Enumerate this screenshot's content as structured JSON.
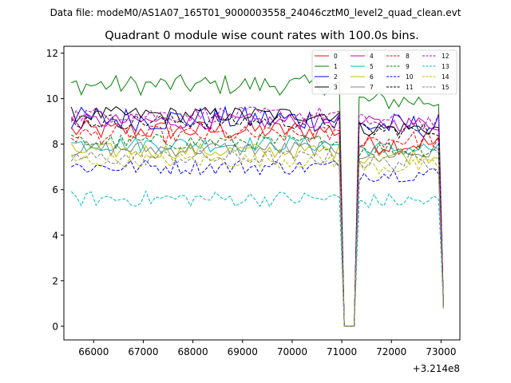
{
  "chart_data": {
    "type": "line",
    "suptitle": "Data file: modeM0/AS1A07_165T01_9000003558_24046cztM0_level2_quad_clean.evt",
    "title": "Quadrant 0 module wise count rates with 100.0s bins.",
    "xlabel": "",
    "ylabel": "",
    "x_offset_label": "+3.214e8",
    "xlim": [
      65400,
      73380
    ],
    "ylim": [
      -0.6,
      12.3
    ],
    "x_ticks": [
      66000,
      67000,
      68000,
      69000,
      70000,
      71000,
      72000,
      73000
    ],
    "x_tick_labels": [
      "66000",
      "67000",
      "68000",
      "69000",
      "70000",
      "71000",
      "72000",
      "73000"
    ],
    "y_ticks": [
      0,
      2,
      4,
      6,
      8,
      10,
      12
    ],
    "y_tick_labels": [
      "0",
      "2",
      "4",
      "6",
      "8",
      "10",
      "12"
    ],
    "bin_seconds": 100,
    "x_start": 65550,
    "n_points": 76,
    "gap_range": [
      71000,
      71250
    ],
    "legend_position": "upper right",
    "series": [
      {
        "name": "0",
        "color": "#ff0000",
        "dash": "solid",
        "level_pre": 8.6,
        "level_post": 8.0,
        "noise": 0.45,
        "drop": 0.8
      },
      {
        "name": "1",
        "color": "#008000",
        "dash": "solid",
        "level_pre": 10.6,
        "level_post": 9.9,
        "noise": 0.45,
        "drop": 0.8
      },
      {
        "name": "2",
        "color": "#0000ff",
        "dash": "solid",
        "level_pre": 9.1,
        "level_post": 8.8,
        "noise": 0.55,
        "drop": 0.8
      },
      {
        "name": "3",
        "color": "#000000",
        "dash": "solid",
        "level_pre": 9.3,
        "level_post": 8.7,
        "noise": 0.35,
        "drop": 0.8
      },
      {
        "name": "4",
        "color": "#bf00bf",
        "dash": "solid",
        "level_pre": 9.0,
        "level_post": 8.9,
        "noise": 0.35,
        "drop": 0.8
      },
      {
        "name": "5",
        "color": "#00bfbf",
        "dash": "solid",
        "level_pre": 8.0,
        "level_post": 7.8,
        "noise": 0.35,
        "drop": 0.8
      },
      {
        "name": "6",
        "color": "#bfbf00",
        "dash": "solid",
        "level_pre": 7.7,
        "level_post": 7.5,
        "noise": 0.35,
        "drop": 0.8
      },
      {
        "name": "7",
        "color": "#808080",
        "dash": "solid",
        "level_pre": 7.8,
        "level_post": 7.6,
        "noise": 0.35,
        "drop": 0.8
      },
      {
        "name": "8",
        "color": "#ff0000",
        "dash": "dashed",
        "level_pre": 8.4,
        "level_post": 8.2,
        "noise": 0.4,
        "drop": 0.8
      },
      {
        "name": "9",
        "color": "#008000",
        "dash": "dashed",
        "level_pre": 8.1,
        "level_post": 7.8,
        "noise": 0.35,
        "drop": 0.8
      },
      {
        "name": "10",
        "color": "#0000ff",
        "dash": "dashed",
        "level_pre": 7.0,
        "level_post": 6.7,
        "noise": 0.35,
        "drop": 0.8
      },
      {
        "name": "11",
        "color": "#000000",
        "dash": "dashed",
        "level_pre": 9.0,
        "level_post": 8.6,
        "noise": 0.35,
        "drop": 0.8
      },
      {
        "name": "12",
        "color": "#bf00bf",
        "dash": "dashed",
        "level_pre": 9.3,
        "level_post": 9.0,
        "noise": 0.35,
        "drop": 0.8
      },
      {
        "name": "13",
        "color": "#00bfbf",
        "dash": "dashed",
        "level_pre": 5.6,
        "level_post": 5.5,
        "noise": 0.35,
        "drop": 0.8
      },
      {
        "name": "14",
        "color": "#bfbf00",
        "dash": "dashed",
        "level_pre": 7.3,
        "level_post": 7.0,
        "noise": 0.35,
        "drop": 0.8
      },
      {
        "name": "15",
        "color": "#808080",
        "dash": "dashed",
        "level_pre": 7.4,
        "level_post": 7.2,
        "noise": 0.35,
        "drop": 0.8
      }
    ]
  }
}
